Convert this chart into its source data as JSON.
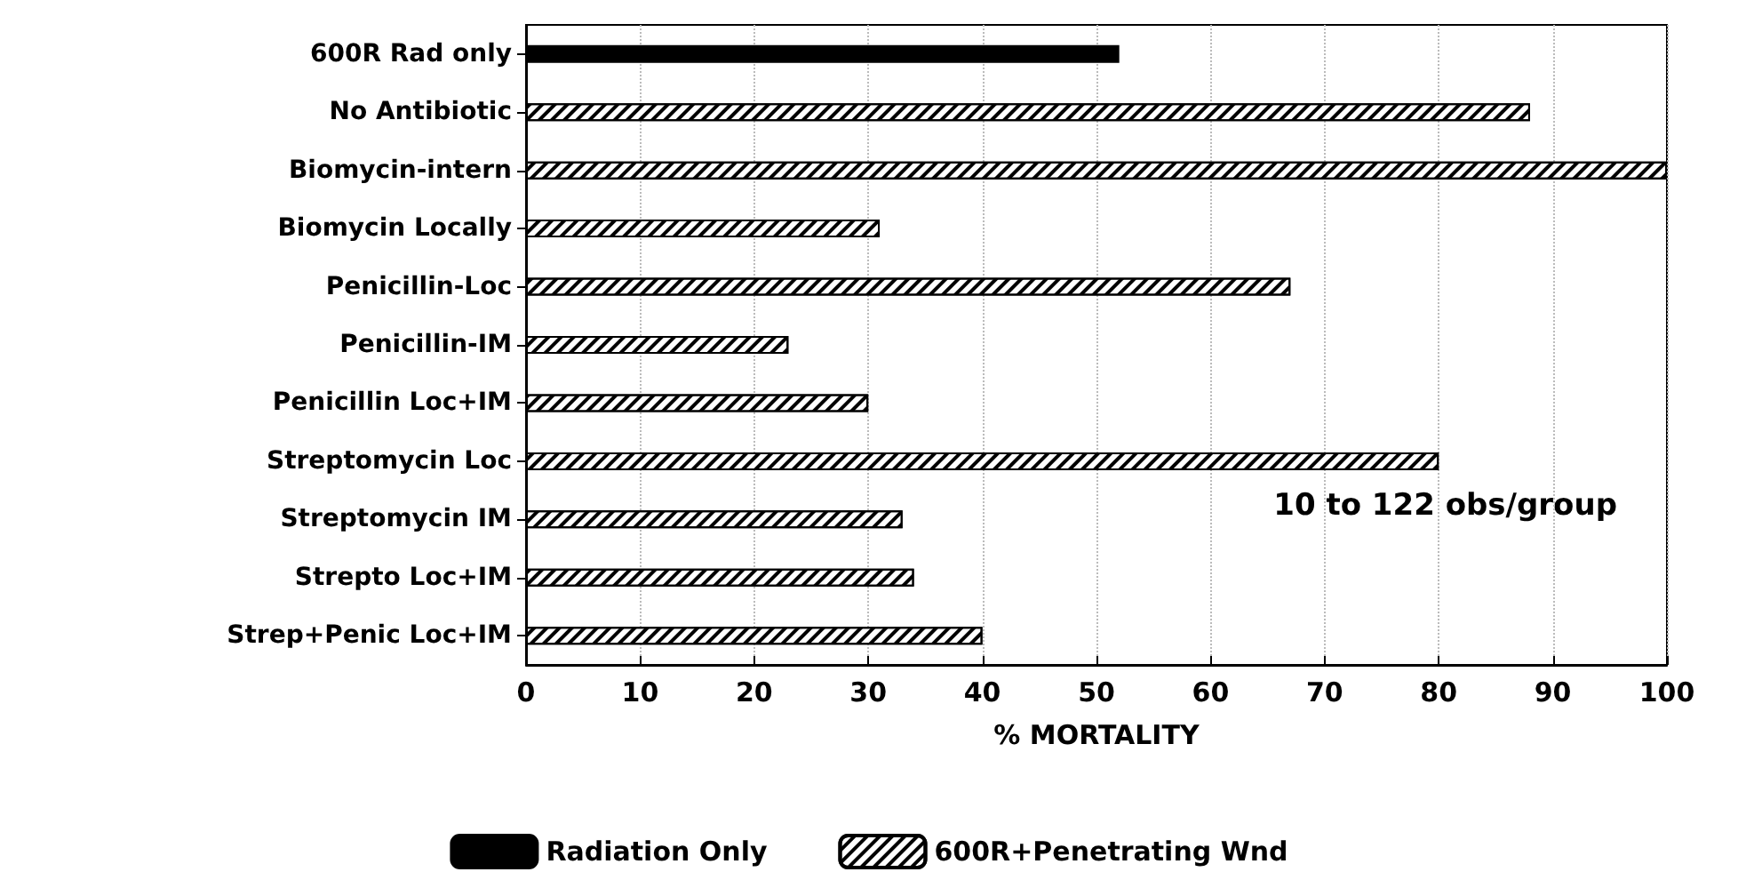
{
  "chart_data": {
    "type": "bar",
    "orientation": "horizontal",
    "xlabel": "% MORTALITY",
    "categories": [
      "600R Rad only",
      "No Antibiotic",
      "Biomycin-intern",
      "Biomycin Locally",
      "Penicillin-Loc",
      "Penicillin-IM",
      "Penicillin Loc+IM",
      "Streptomycin Loc",
      "Streptomycin IM",
      "Strepto Loc+IM",
      "Strep+Penic Loc+IM"
    ],
    "series": [
      {
        "name": "Radiation Only",
        "color": "#000000",
        "values": [
          52,
          null,
          null,
          null,
          null,
          null,
          null,
          null,
          null,
          null,
          null
        ]
      },
      {
        "name": "600R+Penetrating Wnd",
        "color": "#ffffff",
        "values": [
          null,
          88,
          100,
          31,
          67,
          23,
          30,
          80,
          33,
          34,
          40
        ]
      }
    ],
    "xlim": [
      0,
      100
    ],
    "xticks": [
      0,
      10,
      20,
      30,
      40,
      50,
      60,
      70,
      80,
      90,
      100
    ],
    "grid": "x",
    "legend": "bottom",
    "annotations": [
      "10 to 122 obs/group"
    ]
  }
}
